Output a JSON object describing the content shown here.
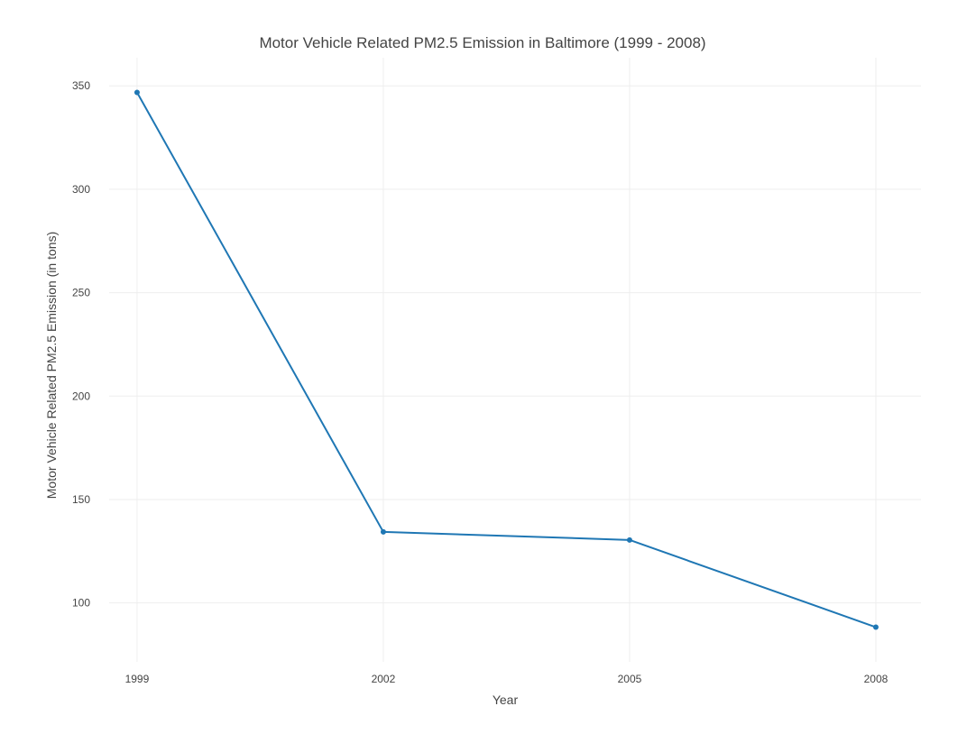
{
  "chart_data": {
    "type": "line",
    "title": "Motor Vehicle Related PM2.5 Emission in Baltimore (1999 - 2008)",
    "xlabel": "Year",
    "ylabel": "Motor Vehicle Related PM2.5 Emission (in tons)",
    "x": [
      1999,
      2002,
      2005,
      2008
    ],
    "x_tick_labels": [
      "1999",
      "2002",
      "2005",
      "2008"
    ],
    "y_ticks": [
      100,
      150,
      200,
      250,
      300,
      350
    ],
    "y_tick_labels": [
      "100",
      "150",
      "200",
      "250",
      "300",
      "350"
    ],
    "xlim": [
      1998.66,
      2008.55
    ],
    "ylim": [
      71.5,
      363.6
    ],
    "series": [
      {
        "values": [
          346.82,
          134.31,
          130.43,
          88.28
        ],
        "color": "#1f77b4",
        "marker": "circle"
      }
    ],
    "grid": true,
    "legend": "none"
  }
}
